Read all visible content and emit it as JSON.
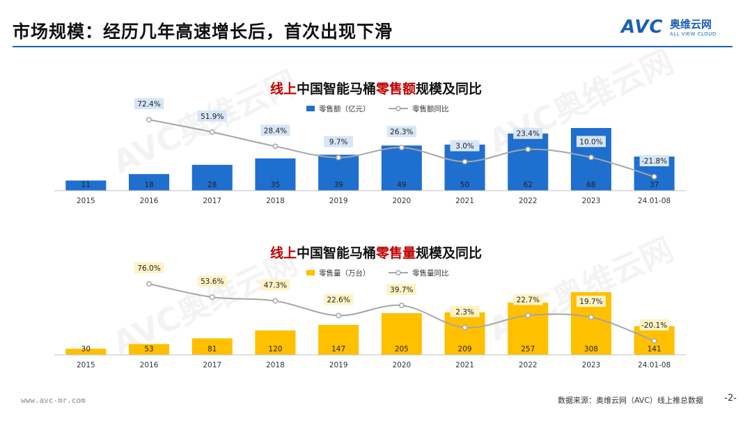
{
  "header": {
    "title": "市场规模：经历几年高速增长后，首次出现下滑",
    "logo_avc": "AVC",
    "logo_cn": "奥维云网",
    "logo_en": "ALL VIEW CLOUD"
  },
  "watermark": {
    "main": "AVC奥维云网",
    "sub": "ALL VIEW CLOUD"
  },
  "chart_data": [
    {
      "type": "bar",
      "title": "线上中国智能马桶零售额规模及同比",
      "title_segments": [
        {
          "text": "线上",
          "color": "#c00000"
        },
        {
          "text": "中国智能马桶",
          "color": "#111111"
        },
        {
          "text": "零售额",
          "color": "#c00000"
        },
        {
          "text": "规模及同比",
          "color": "#111111"
        }
      ],
      "categories": [
        "2015",
        "2016",
        "2017",
        "2018",
        "2019",
        "2020",
        "2021",
        "2022",
        "2023",
        "24.01-08"
      ],
      "series": [
        {
          "name": "零售额（亿元）",
          "kind": "bar",
          "color": "#1f6fcf",
          "values": [
            11,
            18,
            28,
            35,
            39,
            49,
            50,
            62,
            68,
            37
          ],
          "labels": [
            "11",
            "18",
            "28",
            "35",
            "39",
            "49",
            "50",
            "62",
            "68",
            "37"
          ]
        },
        {
          "name": "零售额同比",
          "kind": "line",
          "color": "#a6a6a6",
          "values": [
            null,
            72.4,
            51.9,
            28.4,
            9.7,
            26.3,
            3.0,
            23.4,
            10.0,
            -21.8
          ],
          "labels": [
            "",
            "72.4%",
            "51.9%",
            "28.4%",
            "9.7%",
            "26.3%",
            "3.0%",
            "23.4%",
            "10.0%",
            "-21.8%"
          ]
        }
      ],
      "label_box_color": "#d6e6f7",
      "legend_position": "top-center",
      "grid": false
    },
    {
      "type": "bar",
      "title": "线上中国智能马桶零售量规模及同比",
      "title_segments": [
        {
          "text": "线上",
          "color": "#c00000"
        },
        {
          "text": "中国智能马桶",
          "color": "#111111"
        },
        {
          "text": "零售量",
          "color": "#c00000"
        },
        {
          "text": "规模及同比",
          "color": "#111111"
        }
      ],
      "categories": [
        "2015",
        "2016",
        "2017",
        "2018",
        "2019",
        "2020",
        "2021",
        "2022",
        "2023",
        "24.01-08"
      ],
      "series": [
        {
          "name": "零售量（万台）",
          "kind": "bar",
          "color": "#ffc000",
          "values": [
            30,
            53,
            81,
            120,
            147,
            205,
            209,
            257,
            308,
            141
          ],
          "labels": [
            "30",
            "53",
            "81",
            "120",
            "147",
            "205",
            "209",
            "257",
            "308",
            "141"
          ]
        },
        {
          "name": "零售量同比",
          "kind": "line",
          "color": "#a6a6a6",
          "values": [
            null,
            76.0,
            53.6,
            47.3,
            22.6,
            39.7,
            2.3,
            22.7,
            19.7,
            -20.1
          ],
          "labels": [
            "",
            "76.0%",
            "53.6%",
            "47.3%",
            "22.6%",
            "39.7%",
            "2.3%",
            "22.7%",
            "19.7%",
            "-20.1%"
          ]
        }
      ],
      "label_box_color": "#fff2c4",
      "legend_position": "top-center",
      "grid": false
    }
  ],
  "footer": {
    "url": "www.avc-mr.com",
    "source": "数据来源：奥维云网（AVC）线上推总数据",
    "page": "-2-"
  }
}
